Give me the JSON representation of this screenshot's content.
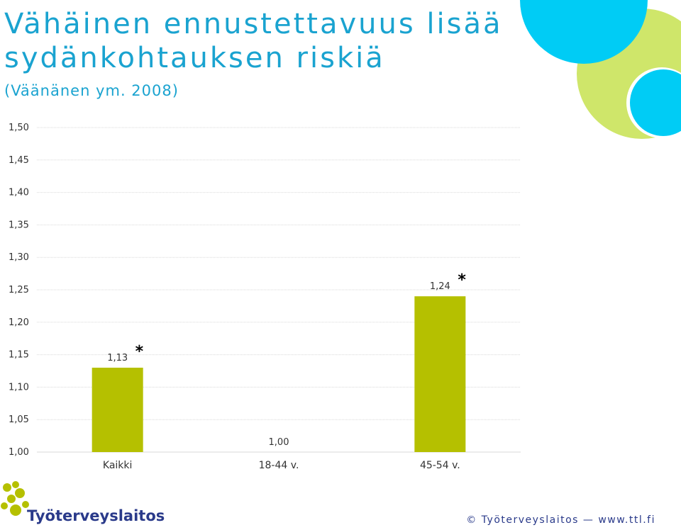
{
  "header": {
    "title_line1": "Vähäinen ennustettavuus lisää",
    "title_line2": "sydänkohtauksen riskiä",
    "subtitle": "(Väänänen ym. 2008)"
  },
  "chart_data": {
    "type": "bar",
    "categories": [
      "Kaikki",
      "18-44 v.",
      "45-54 v."
    ],
    "values": [
      1.13,
      1.0,
      1.24
    ],
    "data_labels": [
      "1,13",
      "1,00",
      "1,24"
    ],
    "significant": [
      true,
      false,
      true
    ],
    "significance_marker": "*",
    "ylim": [
      1.0,
      1.5
    ],
    "y_ticks": [
      "1,00",
      "1,05",
      "1,10",
      "1,15",
      "1,20",
      "1,25",
      "1,30",
      "1,35",
      "1,40",
      "1,45",
      "1,50"
    ],
    "y_tick_values": [
      1.0,
      1.05,
      1.1,
      1.15,
      1.2,
      1.25,
      1.3,
      1.35,
      1.4,
      1.45,
      1.5
    ],
    "grid": true,
    "bar_color": "#b5c000",
    "title": "",
    "xlabel": "",
    "ylabel": ""
  },
  "logo": {
    "text": "Työterveyslaitos"
  },
  "footer": {
    "text": "© Työterveyslaitos — www.ttl.fi"
  },
  "colors": {
    "accent": "#1aa3d0",
    "circle_blue": "#00ccf5",
    "circle_green": "#cfe66a",
    "brand_navy": "#2a3a8a"
  }
}
